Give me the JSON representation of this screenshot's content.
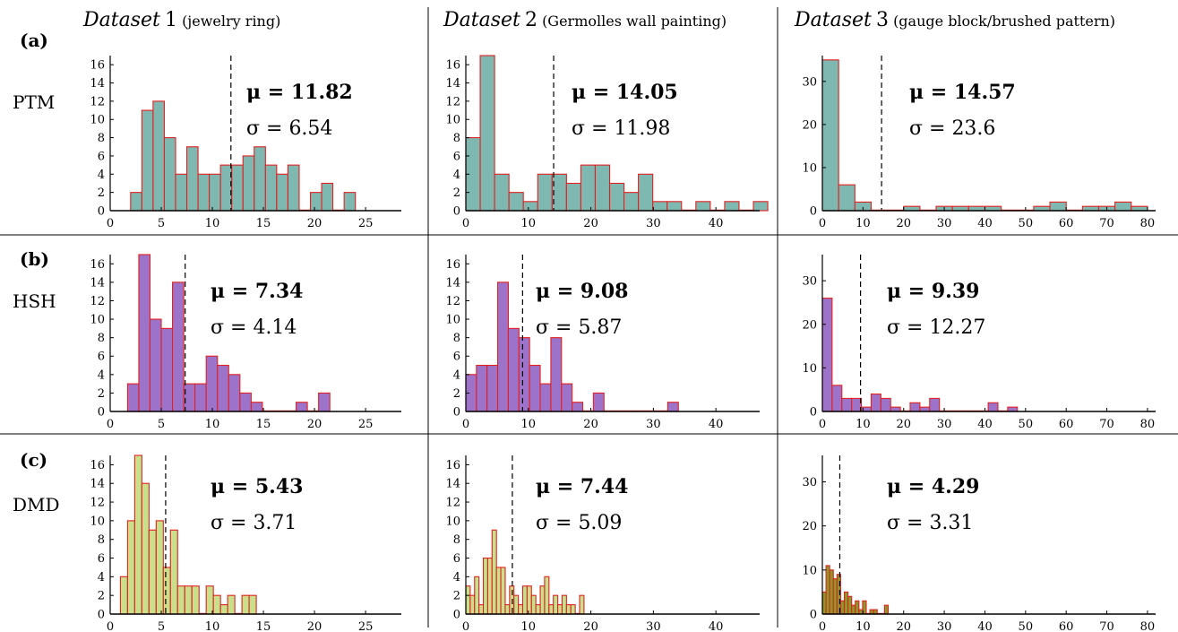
{
  "columns": [
    {
      "label": "Dataset",
      "number": "1",
      "desc": "(jewelry ring)"
    },
    {
      "label": "Dataset",
      "number": "2",
      "desc": "(Germolles wall painting)"
    },
    {
      "label": "Dataset",
      "number": "3",
      "desc": "(gauge block/brushed pattern)"
    }
  ],
  "rows": [
    {
      "letter": "(a)",
      "method": "PTM"
    },
    {
      "letter": "(b)",
      "method": "HSH"
    },
    {
      "letter": "(c)",
      "method": "DMD"
    }
  ],
  "colors": {
    "PTM": "#7fb8b1",
    "HSH": "#9c73c9",
    "DMD": "#c8e08c",
    "DMD_dataset3": "#8a9a2a",
    "bar_edge": "#e32020",
    "axis_line": "#000000",
    "mean_line": "#000000"
  },
  "chart_data": [
    {
      "type": "bar",
      "title": "Dataset 1 (jewelry ring)",
      "row": "(a)",
      "method": "PTM",
      "mean": 11.82,
      "std": 6.54,
      "mu_label": "μ = 11.82",
      "sigma_label": "σ = 6.54",
      "xlim": [
        0,
        28.5
      ],
      "ylim": [
        0,
        17
      ],
      "xticks": [
        0,
        5,
        10,
        15,
        20,
        25
      ],
      "yticks": [
        0,
        2,
        4,
        6,
        8,
        10,
        12,
        14,
        16
      ],
      "bin_start": 2,
      "bin_width": 1.1,
      "counts": [
        2,
        11,
        12,
        8,
        4,
        7,
        4,
        4,
        5,
        5,
        6,
        7,
        5,
        4,
        5,
        0,
        2,
        3,
        0,
        2
      ]
    },
    {
      "type": "bar",
      "title": "Dataset 2 (Germolles wall painting)",
      "row": "(a)",
      "method": "PTM",
      "mean": 14.05,
      "std": 11.98,
      "mu_label": "μ = 14.05",
      "sigma_label": "σ = 11.98",
      "xlim": [
        0,
        47
      ],
      "ylim": [
        0,
        17
      ],
      "xticks": [
        0,
        10,
        20,
        30,
        40
      ],
      "yticks": [
        0,
        2,
        4,
        6,
        8,
        10,
        12,
        14,
        16
      ],
      "bin_start": 0,
      "bin_width": 2.3,
      "counts": [
        8,
        17,
        4,
        2,
        1,
        4,
        4,
        3,
        5,
        5,
        3,
        2,
        4,
        1,
        1,
        0,
        1,
        0,
        1,
        0,
        1
      ]
    },
    {
      "type": "bar",
      "title": "Dataset 3 (gauge block/brushed pattern)",
      "row": "(a)",
      "method": "PTM",
      "mean": 14.57,
      "std": 23.6,
      "mu_label": "μ = 14.57",
      "sigma_label": "σ = 23.6",
      "xlim": [
        0,
        82
      ],
      "ylim": [
        0,
        36
      ],
      "xticks": [
        0,
        10,
        20,
        30,
        40,
        50,
        60,
        70,
        80
      ],
      "yticks": [
        0,
        10,
        20,
        30
      ],
      "bin_start": 0,
      "bin_width": 4,
      "counts": [
        35,
        6,
        2,
        0,
        0,
        1,
        0,
        1,
        1,
        1,
        1,
        0,
        0,
        1,
        2,
        0,
        1,
        1,
        2,
        1
      ]
    },
    {
      "type": "bar",
      "title": "Dataset 1 (jewelry ring)",
      "row": "(b)",
      "method": "HSH",
      "mean": 7.34,
      "std": 4.14,
      "mu_label": "μ = 7.34",
      "sigma_label": "σ = 4.14",
      "xlim": [
        0,
        28.5
      ],
      "ylim": [
        0,
        17
      ],
      "xticks": [
        0,
        5,
        10,
        15,
        20,
        25
      ],
      "yticks": [
        0,
        2,
        4,
        6,
        8,
        10,
        12,
        14,
        16
      ],
      "bin_start": 1.7,
      "bin_width": 1.1,
      "counts": [
        3,
        17,
        10,
        9,
        14,
        3,
        3,
        6,
        5,
        4,
        2,
        1,
        0,
        0,
        0,
        1,
        0,
        2
      ]
    },
    {
      "type": "bar",
      "title": "Dataset 2 (Germolles wall painting)",
      "row": "(b)",
      "method": "HSH",
      "mean": 9.08,
      "std": 5.87,
      "mu_label": "μ = 9.08",
      "sigma_label": "σ = 5.87",
      "xlim": [
        0,
        47
      ],
      "ylim": [
        0,
        17
      ],
      "xticks": [
        0,
        10,
        20,
        30,
        40
      ],
      "yticks": [
        0,
        2,
        4,
        6,
        8,
        10,
        12,
        14,
        16
      ],
      "bin_start": 0,
      "bin_width": 1.7,
      "counts": [
        4,
        5,
        5,
        14,
        9,
        8,
        5,
        3,
        8,
        3,
        1,
        0,
        2,
        0,
        0,
        0,
        0,
        0,
        0,
        1
      ]
    },
    {
      "type": "bar",
      "title": "Dataset 3 (gauge block/brushed pattern)",
      "row": "(b)",
      "method": "HSH",
      "mean": 9.39,
      "std": 12.27,
      "mu_label": "μ = 9.39",
      "sigma_label": "σ = 12.27",
      "xlim": [
        0,
        82
      ],
      "ylim": [
        0,
        36
      ],
      "xticks": [
        0,
        10,
        20,
        30,
        40,
        50,
        60,
        70,
        80
      ],
      "yticks": [
        0,
        10,
        20,
        30
      ],
      "bin_start": 0,
      "bin_width": 2.4,
      "counts": [
        26,
        6,
        3,
        3,
        1,
        4,
        3,
        1,
        0,
        2,
        1,
        3,
        0,
        0,
        0,
        0,
        0,
        2,
        0,
        1
      ]
    },
    {
      "type": "bar",
      "title": "Dataset 1 (jewelry ring)",
      "row": "(c)",
      "method": "DMD",
      "mean": 5.43,
      "std": 3.71,
      "mu_label": "μ = 5.43",
      "sigma_label": "σ = 3.71",
      "xlim": [
        0,
        28.5
      ],
      "ylim": [
        0,
        17
      ],
      "xticks": [
        0,
        5,
        10,
        15,
        20,
        25
      ],
      "yticks": [
        0,
        2,
        4,
        6,
        8,
        10,
        12,
        14,
        16
      ],
      "bin_start": 1,
      "bin_width": 0.7,
      "counts": [
        4,
        10,
        17,
        14,
        9,
        10,
        5,
        9,
        3,
        3,
        3,
        0,
        3,
        2,
        1,
        2,
        0,
        2,
        2
      ]
    },
    {
      "type": "bar",
      "title": "Dataset 2 (Germolles wall painting)",
      "row": "(c)",
      "method": "DMD",
      "mean": 7.44,
      "std": 5.09,
      "mu_label": "μ = 7.44",
      "sigma_label": "σ = 5.09",
      "xlim": [
        0,
        47
      ],
      "ylim": [
        0,
        17
      ],
      "xticks": [
        0,
        10,
        20,
        30,
        40
      ],
      "yticks": [
        0,
        2,
        4,
        6,
        8,
        10,
        12,
        14,
        16
      ],
      "bin_start": 0,
      "bin_width": 0.7,
      "counts": [
        3,
        2,
        4,
        1,
        6,
        6,
        9,
        5,
        5,
        1,
        3,
        2,
        1,
        3,
        3,
        2,
        1,
        3,
        4,
        1,
        2,
        1,
        2,
        1,
        1,
        0,
        2
      ]
    },
    {
      "type": "bar",
      "title": "Dataset 3 (gauge block/brushed pattern)",
      "row": "(c)",
      "method": "DMD",
      "mean": 4.29,
      "std": 3.31,
      "mu_label": "μ = 4.29",
      "sigma_label": "σ = 3.31",
      "xlim": [
        0,
        82
      ],
      "ylim": [
        0,
        36
      ],
      "xticks": [
        0,
        10,
        20,
        30,
        40,
        50,
        60,
        70,
        80
      ],
      "yticks": [
        0,
        10,
        20,
        30
      ],
      "bin_start": 0,
      "bin_width": 0.9,
      "counts": [
        5,
        11,
        10,
        8,
        9,
        3,
        5,
        4,
        2,
        3,
        1,
        3,
        0,
        1,
        1,
        0,
        0,
        2
      ]
    }
  ]
}
